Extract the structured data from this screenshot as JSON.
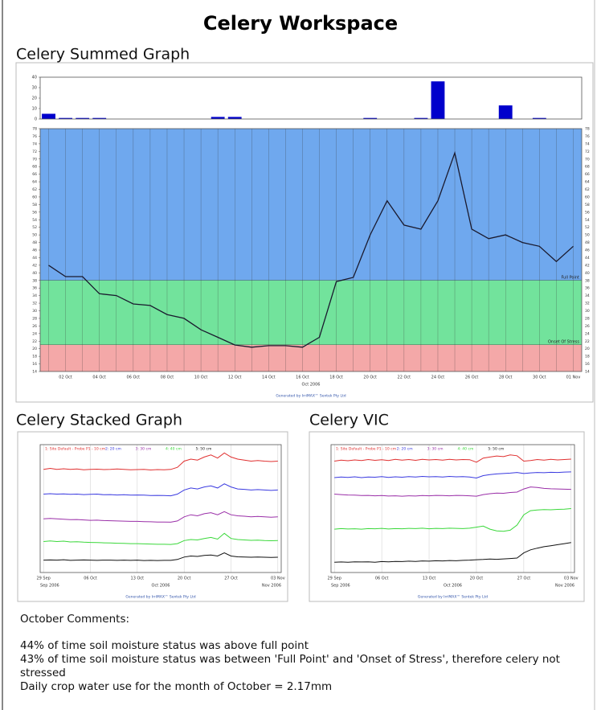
{
  "title": "Celery Workspace",
  "chart_data": [
    {
      "type": "bar",
      "color": "#0000cc",
      "values": [
        5,
        1,
        1,
        1,
        0,
        0,
        0,
        0,
        0,
        0,
        2,
        2,
        0,
        0,
        0,
        0,
        0,
        0,
        0,
        1,
        0,
        0,
        1,
        36,
        0,
        0,
        0,
        13,
        0,
        1,
        0,
        0
      ],
      "ylim": [
        0,
        40
      ],
      "yticks": [
        0,
        10,
        20,
        30,
        40
      ]
    },
    {
      "type": "line",
      "title": "Celery Summed Graph",
      "color": "#1a1a2e",
      "categories": [
        null,
        "02 Oct",
        null,
        "04 Oct",
        null,
        "06 Oct",
        null,
        "08 Oct",
        null,
        "10 Oct",
        null,
        "12 Oct",
        null,
        "14 Oct",
        null,
        "16 Oct",
        null,
        "18 Oct",
        null,
        "20 Oct",
        null,
        "22 Oct",
        null,
        "24 Oct",
        null,
        "26 Oct",
        null,
        "28 Oct",
        null,
        "30 Oct",
        null,
        "01 Nov"
      ],
      "values": [
        42,
        39,
        39,
        34.5,
        34,
        31.8,
        31.4,
        29,
        28,
        25,
        23,
        21,
        20.4,
        20.8,
        20.8,
        20.4,
        23,
        37.7,
        38.8,
        50,
        59,
        52.6,
        51.5,
        59,
        71.6,
        51.5,
        49,
        50,
        48,
        47,
        43,
        47
      ],
      "ylim": [
        14,
        78
      ],
      "yticks": [
        14,
        16,
        18,
        20,
        22,
        24,
        26,
        28,
        30,
        32,
        34,
        36,
        38,
        40,
        42,
        44,
        46,
        48,
        50,
        52,
        54,
        56,
        58,
        60,
        62,
        64,
        66,
        68,
        70,
        72,
        74,
        76,
        78
      ],
      "bands": [
        {
          "name": "Full Point",
          "value": 38,
          "color": "#6fa8ee"
        },
        {
          "name": "Onset Of Stress",
          "value": 21,
          "color": "#72e39c"
        }
      ],
      "below_color": "#f4a8a8",
      "periods": [
        "Oct 2006"
      ],
      "footer": "Generated by IrriMAX™ Sentek Pty Ltd"
    },
    {
      "type": "line",
      "title": "Celery Stacked Graph",
      "categories": [
        "29 Sep",
        null,
        null,
        null,
        null,
        null,
        null,
        "06 Oct",
        null,
        null,
        null,
        null,
        null,
        null,
        "13 Oct",
        null,
        null,
        null,
        null,
        null,
        null,
        "20 Oct",
        null,
        null,
        null,
        null,
        null,
        null,
        "27 Oct",
        null,
        null,
        null,
        null,
        null,
        null,
        "03 Nov"
      ],
      "series": [
        {
          "name": "1: Site Default - Probe P1 - 10 cm",
          "color": "#e03030",
          "values": [
            80,
            80.5,
            80,
            80.3,
            80,
            80.2,
            79.8,
            80,
            80.1,
            79.9,
            80,
            80.2,
            80,
            79.8,
            79.9,
            80,
            79.7,
            79.9,
            79.8,
            80,
            81,
            84,
            85,
            84.5,
            86,
            87,
            85.5,
            88,
            86,
            85,
            84.5,
            84,
            84.3,
            84,
            83.8,
            84
          ]
        },
        {
          "name": "2: 20 cm",
          "color": "#3a3ae0",
          "values": [
            68,
            68.2,
            68,
            68.1,
            67.9,
            68,
            67.8,
            67.9,
            68,
            67.7,
            67.8,
            67.6,
            67.7,
            67.5,
            67.6,
            67.5,
            67.3,
            67.4,
            67.3,
            67.2,
            68,
            70,
            71,
            70.5,
            71.5,
            72,
            71,
            73,
            71.5,
            70.5,
            70.3,
            70,
            70.2,
            70,
            69.8,
            70
          ]
        },
        {
          "name": "3: 30 cm",
          "color": "#9a2fa8",
          "values": [
            56,
            56.2,
            56,
            55.8,
            55.6,
            55.7,
            55.5,
            55.3,
            55.4,
            55.2,
            55.1,
            55,
            54.9,
            54.8,
            54.8,
            54.7,
            54.6,
            54.5,
            54.5,
            54.4,
            55,
            57,
            58,
            57.5,
            58.5,
            59,
            58,
            59.5,
            58,
            57.5,
            57.3,
            57,
            57.2,
            57,
            56.8,
            57
          ]
        },
        {
          "name": "4: 40 cm",
          "color": "#3ad83a",
          "values": [
            45,
            45.3,
            45,
            45.2,
            44.8,
            44.9,
            44.7,
            44.6,
            44.5,
            44.4,
            44.3,
            44.2,
            44.1,
            44,
            44,
            43.9,
            43.8,
            43.7,
            43.7,
            43.6,
            44,
            45.5,
            46,
            45.8,
            46.5,
            47,
            46.2,
            49,
            46.5,
            46,
            45.8,
            45.6,
            45.7,
            45.5,
            45.4,
            45.5
          ]
        },
        {
          "name": "5: 50 cm",
          "color": "#111111",
          "values": [
            36,
            36.1,
            36,
            36.2,
            35.9,
            36,
            36.1,
            36,
            35.9,
            36,
            36,
            35.9,
            36,
            35.9,
            36,
            35.8,
            35.9,
            35.8,
            35.9,
            35.9,
            36.3,
            37.5,
            38,
            37.8,
            38.3,
            38.5,
            38,
            39.5,
            38,
            37.6,
            37.5,
            37.4,
            37.5,
            37.4,
            37.3,
            37.4
          ]
        }
      ],
      "ylim": [
        30,
        92
      ],
      "periods": [
        "Sep 2006",
        "Oct 2006",
        "Nov 2006"
      ],
      "footer": "Generated by IrriMAX™ Sentek Pty Ltd"
    },
    {
      "type": "line",
      "title": "Celery VIC",
      "categories": [
        "29 Sep",
        null,
        null,
        null,
        null,
        null,
        null,
        "06 Oct",
        null,
        null,
        null,
        null,
        null,
        null,
        "13 Oct",
        null,
        null,
        null,
        null,
        null,
        null,
        "20 Oct",
        null,
        null,
        null,
        null,
        null,
        null,
        "27 Oct",
        null,
        null,
        null,
        null,
        null,
        null,
        "03 Nov"
      ],
      "series": [
        {
          "name": "1: Site Default - Probe P1 - 10 cm",
          "color": "#e03030",
          "values": [
            82,
            82.5,
            82.2,
            82.6,
            82.3,
            82.8,
            82.4,
            82.7,
            82.3,
            82.9,
            82.5,
            82.8,
            82.4,
            82.9,
            82.6,
            82.8,
            82.5,
            82.9,
            82.6,
            82.8,
            82.7,
            81.5,
            83.5,
            84,
            84.5,
            84.2,
            85,
            84.6,
            82,
            82.3,
            82.8,
            82.5,
            82.9,
            82.6,
            82.8,
            83
          ]
        },
        {
          "name": "2: 20 cm",
          "color": "#3a3ae0",
          "values": [
            74,
            74.3,
            74.1,
            74.4,
            74,
            74.3,
            74.2,
            74.5,
            74.1,
            74.4,
            74.2,
            74.5,
            74.3,
            74.6,
            74.4,
            74.5,
            74.3,
            74.6,
            74.4,
            74.5,
            74.3,
            73.8,
            75,
            75.5,
            75.8,
            76,
            76.2,
            76.5,
            76,
            76.3,
            76.5,
            76.4,
            76.6,
            76.5,
            76.7,
            76.8
          ]
        },
        {
          "name": "3: 30 cm",
          "color": "#9a2fa8",
          "values": [
            66,
            65.8,
            65.6,
            65.5,
            65.3,
            65.4,
            65.2,
            65.3,
            65.1,
            65.2,
            65,
            65.2,
            65.1,
            65.3,
            65.2,
            65.4,
            65.3,
            65.2,
            65.4,
            65.3,
            65.2,
            65,
            65.8,
            66.2,
            66.5,
            66.4,
            66.8,
            67,
            68.5,
            69.5,
            69.2,
            68.8,
            68.6,
            68.5,
            68.4,
            68.3
          ]
        },
        {
          "name": "4: 40 cm",
          "color": "#3ad83a",
          "values": [
            49,
            49.3,
            49.1,
            49.2,
            49,
            49.3,
            49.2,
            49.4,
            49.1,
            49.3,
            49.2,
            49.4,
            49.3,
            49.5,
            49.2,
            49.4,
            49.3,
            49.5,
            49.4,
            49.3,
            49.5,
            50,
            50.5,
            49,
            48.2,
            48,
            48.5,
            51,
            56,
            58,
            58.3,
            58.5,
            58.4,
            58.6,
            58.7,
            59
          ]
        },
        {
          "name": "5: 50 cm",
          "color": "#111111",
          "values": [
            33,
            33.1,
            33,
            33.2,
            33.1,
            33.2,
            33,
            33.3,
            33.2,
            33.4,
            33.3,
            33.5,
            33.4,
            33.6,
            33.5,
            33.7,
            33.6,
            33.8,
            33.7,
            33.9,
            34,
            34.2,
            34.3,
            34.5,
            34.4,
            34.6,
            34.8,
            35,
            37.5,
            39,
            39.8,
            40.5,
            41,
            41.5,
            42,
            42.5
          ]
        }
      ],
      "ylim": [
        28,
        90
      ],
      "periods": [
        "Sep 2006",
        "Oct 2006",
        "Nov 2006"
      ],
      "footer": "Generated by IrriMAX™ Sentek Pty Ltd"
    }
  ],
  "comments": {
    "heading": "October Comments:",
    "lines": [
      "44% of time soil moisture status was above full point",
      "43% of time soil moisture status was between 'Full Point' and 'Onset of Stress', therefore celery not stressed",
      "Daily crop water use for the month of October = 2.17mm"
    ]
  }
}
